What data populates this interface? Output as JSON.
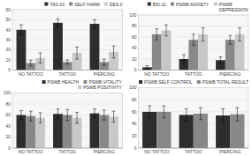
{
  "chart_data": [
    {
      "type": "bar",
      "categories": [
        "NO TATTOO",
        "TATTOO",
        "PIERCING"
      ],
      "series": [
        {
          "name": "TAS-20",
          "color": "#2d2d2d",
          "values": [
            40,
            47,
            46
          ],
          "errors": [
            5,
            4,
            4
          ]
        },
        {
          "name": "SELF HARM",
          "color": "#888888",
          "values": [
            7,
            8,
            8
          ],
          "errors": [
            3,
            2,
            3
          ]
        },
        {
          "name": "DES-II",
          "color": "#c8c8c8",
          "values": [
            12,
            17,
            18
          ],
          "errors": [
            5,
            6,
            6
          ]
        }
      ],
      "ylim": [
        0,
        60
      ],
      "yticks": [
        0,
        10,
        20,
        30,
        40,
        50,
        60
      ],
      "grid": true,
      "legend": "upper right"
    },
    {
      "type": "bar",
      "categories": [
        "NO TATTOO",
        "TATTOO",
        "PIERCING"
      ],
      "series": [
        {
          "name": "BSI-11",
          "color": "#2d2d2d",
          "values": [
            5,
            20,
            18
          ],
          "errors": [
            3,
            8,
            6
          ]
        },
        {
          "name": "PSWB ANXIETY",
          "color": "#888888",
          "values": [
            65,
            55,
            55
          ],
          "errors": [
            10,
            10,
            8
          ]
        },
        {
          "name": "PSWB\nDEPRESSION",
          "color": "#c8c8c8",
          "values": [
            72,
            65,
            65
          ],
          "errors": [
            10,
            12,
            12
          ]
        }
      ],
      "ylim": [
        0,
        100
      ],
      "yticks": [
        0,
        20,
        40,
        60,
        80,
        100
      ],
      "grid": true,
      "legend": "upper right"
    },
    {
      "type": "bar",
      "categories": [
        "NO TATTOO",
        "TATTOO",
        "PIERCING"
      ],
      "series": [
        {
          "name": "PSWB HEALTH",
          "color": "#2d2d2d",
          "values": [
            60,
            62,
            63
          ],
          "errors": [
            8,
            9,
            8
          ]
        },
        {
          "name": "PSWB VITALITY",
          "color": "#888888",
          "values": [
            58,
            60,
            60
          ],
          "errors": [
            9,
            10,
            9
          ]
        },
        {
          "name": "PSWB POSITIVITY",
          "color": "#c8c8c8",
          "values": [
            55,
            55,
            57
          ],
          "errors": [
            9,
            10,
            10
          ]
        }
      ],
      "ylim": [
        0,
        100
      ],
      "yticks": [
        0,
        20,
        40,
        60,
        80,
        100
      ],
      "grid": true,
      "legend": "upper right"
    },
    {
      "type": "bar",
      "categories": [
        "NO TATTOO",
        "TATTOO",
        "PIERCING"
      ],
      "series": [
        {
          "name": "PSWB SELF CONTROL",
          "color": "#2d2d2d",
          "values": [
            60,
            55,
            54
          ],
          "errors": [
            10,
            10,
            11
          ]
        },
        {
          "name": "PSWB TOTAL RESULT",
          "color": "#888888",
          "values": [
            60,
            57,
            56
          ],
          "errors": [
            10,
            10,
            11
          ]
        }
      ],
      "ylim": [
        0,
        100
      ],
      "yticks": [
        0,
        20,
        40,
        60,
        80,
        100
      ],
      "grid": true,
      "legend": "upper right"
    }
  ]
}
